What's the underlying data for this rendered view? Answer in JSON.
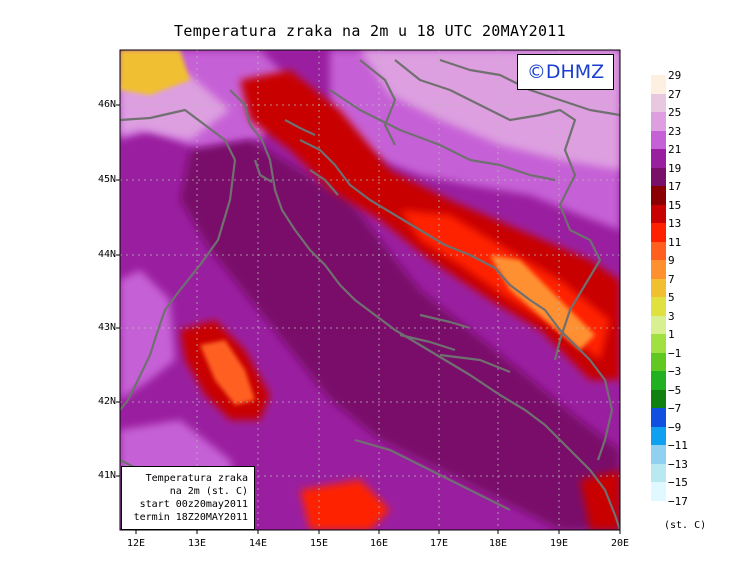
{
  "title": "Temperatura zraka na 2m u 18 UTC 20MAY2011",
  "credit": "©DHMZ",
  "info_box": {
    "line1": "Temperatura zraka",
    "line2": "na 2m (st. C)",
    "line3": "start 00z20may2011",
    "line4": "termin 18Z20MAY2011"
  },
  "y_ticks": [
    "46N",
    "45N",
    "44N",
    "43N",
    "42N",
    "41N"
  ],
  "x_ticks": [
    "12E",
    "13E",
    "14E",
    "15E",
    "16E",
    "17E",
    "18E",
    "19E",
    "20E"
  ],
  "colorbar": {
    "units": "(st. C)",
    "labels": [
      "29",
      "27",
      "25",
      "23",
      "21",
      "19",
      "17",
      "15",
      "13",
      "11",
      "9",
      "7",
      "5",
      "3",
      "1",
      "−1",
      "−3",
      "−5",
      "−7",
      "−9",
      "−11",
      "−13",
      "−15",
      "−17"
    ],
    "colors": [
      "#fdf0e0",
      "#e7c8e0",
      "#dd9fe0",
      "#c660d6",
      "#9a1fa0",
      "#7a0f6a",
      "#8a0000",
      "#c80000",
      "#ff2000",
      "#ff6020",
      "#ff9030",
      "#f0c030",
      "#e0e040",
      "#d8f090",
      "#a0e040",
      "#60c820",
      "#20b020",
      "#108010",
      "#1050e0",
      "#10a0f0",
      "#90d0f0",
      "#b8e8f0",
      "#e0f8ff"
    ]
  },
  "colors": {
    "sea": "#8a0c80",
    "land_warm": "#c04ec8",
    "land_cool": "#d99be0",
    "coast_hot": "#c80000",
    "border": "#707070"
  }
}
